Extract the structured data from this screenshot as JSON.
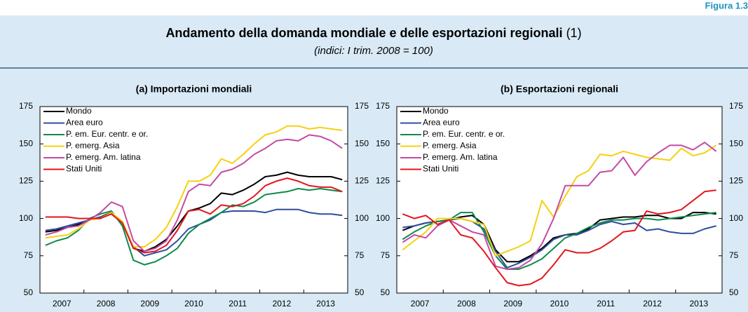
{
  "header": {
    "figure_label": "Figura 1.3",
    "title": "Andamento della domanda mondiale e delle esportazioni regionali",
    "title_note": "(1)",
    "subtitle": "(indici: I trim. 2008 = 100)"
  },
  "chart_data": [
    {
      "type": "line",
      "title": "(a) Importazioni mondiali",
      "categories": [
        "2007",
        null,
        null,
        null,
        "2008",
        null,
        null,
        null,
        "2009",
        null,
        null,
        null,
        "2010",
        null,
        null,
        null,
        "2011",
        null,
        null,
        null,
        "2012",
        null,
        null,
        null,
        "2013",
        null,
        null,
        null
      ],
      "ylim": [
        50,
        175
      ],
      "yticks": [
        50,
        75,
        100,
        125,
        150,
        175
      ],
      "grid": false,
      "legend": "upper left",
      "series": [
        {
          "name": "Mondo",
          "color": "#000000",
          "values": [
            91,
            92,
            94,
            96,
            99,
            101,
            104,
            97,
            80,
            78,
            81,
            86,
            95,
            105,
            107,
            110,
            117,
            116,
            119,
            123,
            128,
            129,
            131,
            129,
            128,
            128,
            128,
            126
          ]
        },
        {
          "name": "Area euro",
          "color": "#2e4f9e",
          "values": [
            92,
            93,
            95,
            97,
            99,
            101,
            103,
            97,
            81,
            75,
            77,
            79,
            85,
            93,
            96,
            99,
            104,
            105,
            105,
            105,
            104,
            106,
            106,
            106,
            104,
            103,
            103,
            102
          ]
        },
        {
          "name": "P. em. Eur. centr. e or.",
          "color": "#0e8a4a",
          "values": [
            82,
            85,
            87,
            92,
            100,
            103,
            105,
            95,
            72,
            69,
            71,
            75,
            80,
            90,
            96,
            100,
            104,
            109,
            108,
            111,
            116,
            117,
            118,
            120,
            119,
            120,
            119,
            118
          ]
        },
        {
          "name": "P. emerg. Asia",
          "color": "#f5d10f",
          "values": [
            87,
            88,
            89,
            93,
            99,
            100,
            104,
            98,
            81,
            81,
            86,
            94,
            108,
            125,
            125,
            129,
            140,
            137,
            143,
            150,
            156,
            158,
            162,
            162,
            160,
            161,
            160,
            159
          ]
        },
        {
          "name": "P. emerg. Am. latina",
          "color": "#c34aa4",
          "values": [
            89,
            91,
            94,
            95,
            99,
            104,
            111,
            108,
            85,
            78,
            80,
            85,
            99,
            118,
            123,
            122,
            131,
            133,
            137,
            143,
            147,
            152,
            153,
            152,
            156,
            155,
            152,
            147
          ]
        },
        {
          "name": "Stati Uniti",
          "color": "#e3161e",
          "values": [
            101,
            101,
            101,
            100,
            100,
            100,
            103,
            97,
            80,
            77,
            78,
            82,
            92,
            105,
            106,
            103,
            109,
            108,
            110,
            115,
            122,
            125,
            127,
            125,
            122,
            121,
            121,
            118
          ]
        }
      ]
    },
    {
      "type": "line",
      "title": "(b) Esportazioni regionali",
      "categories": [
        "2007",
        null,
        null,
        null,
        "2008",
        null,
        null,
        null,
        "2009",
        null,
        null,
        null,
        "2010",
        null,
        null,
        null,
        "2011",
        null,
        null,
        null,
        "2012",
        null,
        null,
        null,
        "2013",
        null,
        null,
        null
      ],
      "ylim": [
        50,
        175
      ],
      "yticks": [
        50,
        75,
        100,
        125,
        150,
        175
      ],
      "grid": false,
      "legend": "upper left",
      "series": [
        {
          "name": "Mondo",
          "color": "#000000",
          "values": [
            92,
            95,
            97,
            98,
            99,
            101,
            102,
            96,
            79,
            71,
            71,
            75,
            80,
            87,
            89,
            90,
            93,
            99,
            100,
            101,
            101,
            102,
            102,
            100,
            100,
            104,
            104,
            103
          ]
        },
        {
          "name": "Area euro",
          "color": "#2e4f9e",
          "values": [
            94,
            95,
            97,
            98,
            99,
            100,
            98,
            93,
            78,
            67,
            70,
            74,
            79,
            86,
            89,
            89,
            92,
            96,
            98,
            96,
            97,
            92,
            93,
            91,
            90,
            90,
            93,
            95
          ]
        },
        {
          "name": "P. em. Eur. centr. e or.",
          "color": "#0e8a4a",
          "values": [
            86,
            91,
            95,
            98,
            99,
            104,
            104,
            91,
            75,
            66,
            66,
            69,
            73,
            80,
            87,
            90,
            94,
            97,
            99,
            99,
            100,
            100,
            99,
            100,
            101,
            102,
            103,
            104
          ]
        },
        {
          "name": "P. emerg. Asia",
          "color": "#f5d10f",
          "values": [
            79,
            85,
            91,
            100,
            100,
            100,
            98,
            96,
            75,
            78,
            81,
            85,
            112,
            101,
            115,
            128,
            132,
            143,
            142,
            145,
            143,
            141,
            140,
            139,
            147,
            142,
            144,
            149
          ]
        },
        {
          "name": "P. emerg. Am. latina",
          "color": "#c34aa4",
          "values": [
            84,
            89,
            87,
            95,
            99,
            95,
            91,
            89,
            68,
            66,
            67,
            72,
            83,
            100,
            122,
            122,
            122,
            131,
            132,
            141,
            129,
            138,
            144,
            149,
            149,
            146,
            151,
            145
          ]
        },
        {
          "name": "Stati Uniti",
          "color": "#e3161e",
          "values": [
            103,
            100,
            102,
            96,
            99,
            89,
            87,
            78,
            67,
            57,
            55,
            56,
            60,
            69,
            79,
            77,
            77,
            80,
            85,
            91,
            92,
            105,
            103,
            104,
            106,
            112,
            118,
            119
          ]
        }
      ]
    }
  ]
}
